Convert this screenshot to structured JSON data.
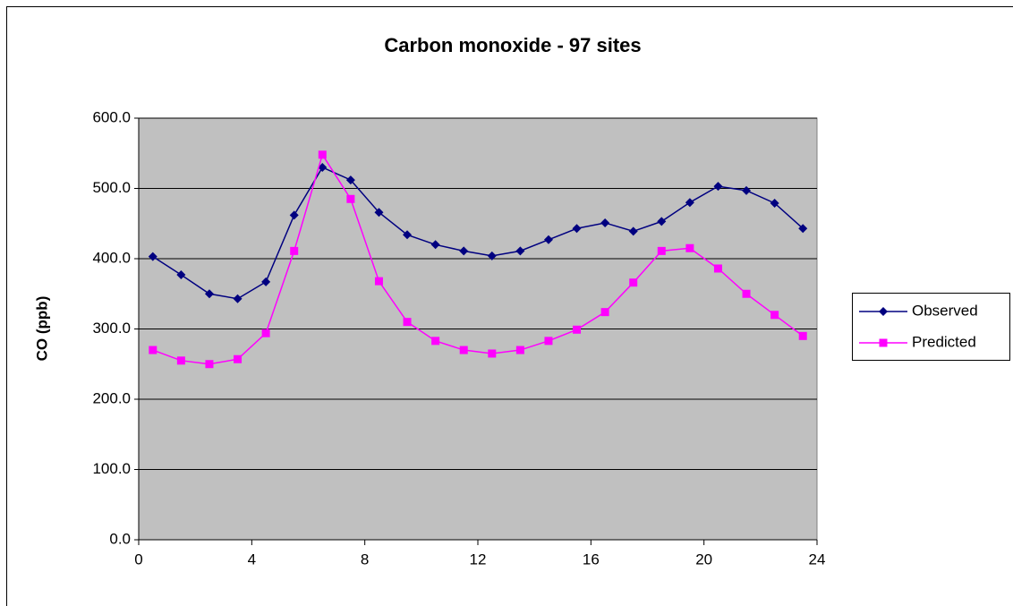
{
  "chart_data": {
    "type": "line",
    "title": "Carbon monoxide - 97 sites",
    "y_label": "CO (ppb)",
    "x": [
      0.5,
      1.5,
      2.5,
      3.5,
      4.5,
      5.5,
      6.5,
      7.5,
      8.5,
      9.5,
      10.5,
      11.5,
      12.5,
      13.5,
      14.5,
      15.5,
      16.5,
      17.5,
      18.5,
      19.5,
      20.5,
      21.5,
      22.5,
      23.5
    ],
    "series": [
      {
        "name": "Observed",
        "color": "#000080",
        "marker": "diamond",
        "values": [
          403,
          377,
          350,
          343,
          367,
          462,
          530,
          512,
          466,
          434,
          420,
          411,
          404,
          411,
          427,
          443,
          451,
          439,
          453,
          480,
          503,
          497,
          479,
          443
        ]
      },
      {
        "name": "Predicted",
        "color": "#ff00ff",
        "marker": "square",
        "values": [
          270,
          255,
          250,
          257,
          294,
          411,
          548,
          485,
          368,
          310,
          283,
          270,
          265,
          270,
          283,
          299,
          324,
          366,
          411,
          415,
          386,
          350,
          320,
          290
        ]
      }
    ],
    "xlim": [
      0,
      24
    ],
    "xticks": [
      0,
      4,
      8,
      12,
      16,
      20,
      24
    ],
    "ylim": [
      0,
      600
    ],
    "yticks": [
      {
        "value": 0,
        "label": "0.0"
      },
      {
        "value": 100,
        "label": "100.0"
      },
      {
        "value": 200,
        "label": "200.0"
      },
      {
        "value": 300,
        "label": "300.0"
      },
      {
        "value": 400,
        "label": "400.0"
      },
      {
        "value": 500,
        "label": "500.0"
      },
      {
        "value": 600,
        "label": "600.0"
      }
    ],
    "grid": true,
    "legend": "right",
    "plot_background": "#c0c0c0"
  }
}
